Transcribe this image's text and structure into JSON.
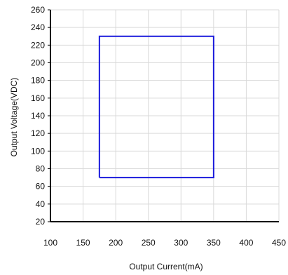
{
  "chart_data": {
    "type": "line",
    "title": "",
    "xlabel": "Output Current(mA)",
    "ylabel": "Output Voltage(VDC)",
    "xlim": [
      100,
      450
    ],
    "ylim": [
      20,
      260
    ],
    "x_ticks": [
      100,
      150,
      200,
      250,
      300,
      350,
      400,
      450
    ],
    "y_ticks": [
      20,
      40,
      60,
      80,
      100,
      120,
      140,
      160,
      180,
      200,
      220,
      240,
      260
    ],
    "grid": true,
    "legend": "none",
    "series": [
      {
        "x": [
          175,
          350,
          350,
          175,
          175
        ],
        "y": [
          70,
          70,
          230,
          230,
          70
        ],
        "color": "#1a1adc"
      }
    ]
  }
}
